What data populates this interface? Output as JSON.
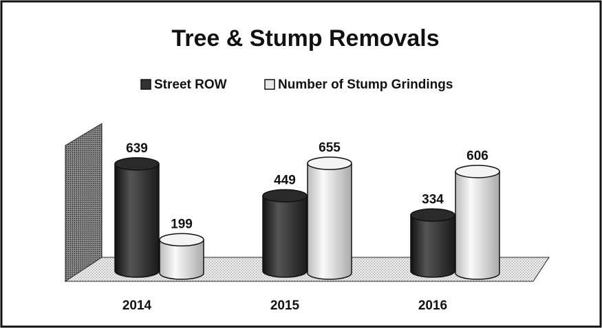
{
  "chart_data": {
    "type": "bar",
    "title": "Tree & Stump Removals",
    "categories": [
      "2014",
      "2015",
      "2016"
    ],
    "series": [
      {
        "name": "Street ROW",
        "color": "#333333",
        "values": [
          639,
          449,
          334
        ]
      },
      {
        "name": "Number of Stump Grindings",
        "color": "#e8e8e8",
        "values": [
          199,
          655,
          606
        ]
      }
    ]
  }
}
